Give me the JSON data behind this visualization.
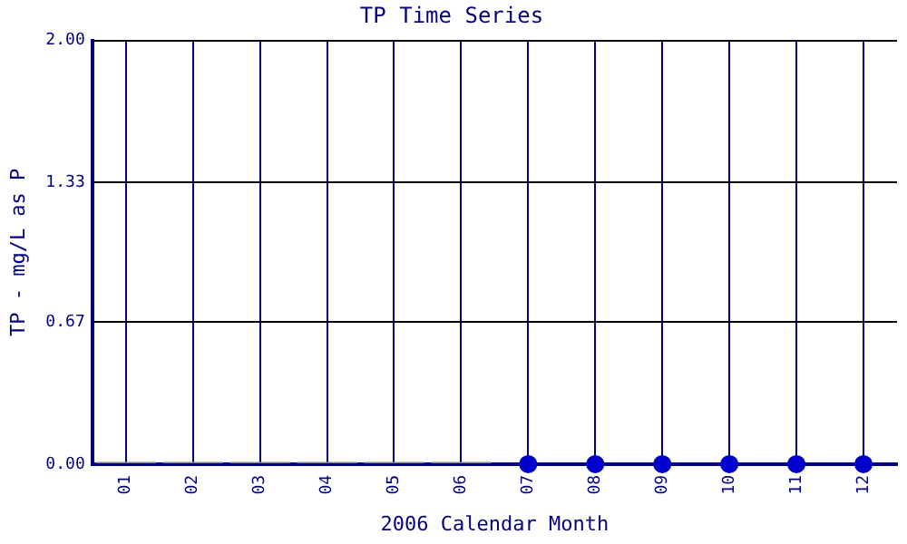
{
  "chart_data": {
    "type": "bar",
    "title": "TP Time Series",
    "xlabel": "2006 Calendar Month",
    "ylabel": "TP - mg/L as P",
    "categories": [
      "01",
      "02",
      "03",
      "04",
      "05",
      "06",
      "07",
      "08",
      "09",
      "10",
      "11",
      "12"
    ],
    "series": [
      {
        "color": "#808080",
        "values": [
          0.01,
          0.01,
          0.01,
          0.01,
          0.01,
          0.01,
          null,
          null,
          null,
          null,
          null,
          null
        ]
      },
      {
        "type": "scatter",
        "color": "#0000cc",
        "values": [
          null,
          null,
          null,
          null,
          null,
          null,
          0,
          0,
          0,
          0,
          0,
          0
        ]
      }
    ],
    "ylim": [
      0,
      2
    ],
    "yticks": [
      {
        "value": 0,
        "label": "0.00"
      },
      {
        "value": 0.67,
        "label": "0.67"
      },
      {
        "value": 1.33,
        "label": "1.33"
      },
      {
        "value": 2,
        "label": "2.00"
      }
    ],
    "grid": true,
    "marker": "circle",
    "legend": false
  }
}
